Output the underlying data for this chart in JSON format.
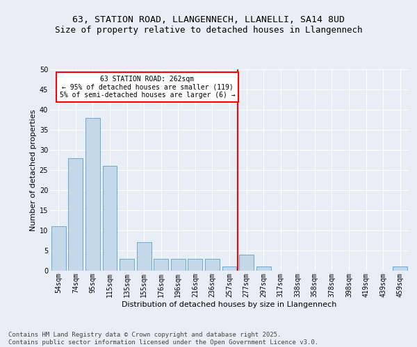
{
  "title": "63, STATION ROAD, LLANGENNECH, LLANELLI, SA14 8UD",
  "subtitle": "Size of property relative to detached houses in Llangennech",
  "xlabel": "Distribution of detached houses by size in Llangennech",
  "ylabel": "Number of detached properties",
  "categories": [
    "54sqm",
    "74sqm",
    "95sqm",
    "115sqm",
    "135sqm",
    "155sqm",
    "176sqm",
    "196sqm",
    "216sqm",
    "236sqm",
    "257sqm",
    "277sqm",
    "297sqm",
    "317sqm",
    "338sqm",
    "358sqm",
    "378sqm",
    "398sqm",
    "419sqm",
    "439sqm",
    "459sqm"
  ],
  "values": [
    11,
    28,
    38,
    26,
    3,
    7,
    3,
    3,
    3,
    3,
    1,
    4,
    1,
    0,
    0,
    0,
    0,
    0,
    0,
    0,
    1
  ],
  "bar_color": "#c5d8ea",
  "bar_edge_color": "#5a9ec9",
  "highlight_line_color": "red",
  "annotation_text": "63 STATION ROAD: 262sqm\n← 95% of detached houses are smaller (119)\n5% of semi-detached houses are larger (6) →",
  "ylim": [
    0,
    50
  ],
  "yticks": [
    0,
    5,
    10,
    15,
    20,
    25,
    30,
    35,
    40,
    45,
    50
  ],
  "background_color": "#e8eef5",
  "grid_color": "#ffffff",
  "title_fontsize": 9.5,
  "axis_label_fontsize": 8,
  "tick_fontsize": 7,
  "footer_text": "Contains HM Land Registry data © Crown copyright and database right 2025.\nContains public sector information licensed under the Open Government Licence v3.0.",
  "footer_fontsize": 6.5
}
